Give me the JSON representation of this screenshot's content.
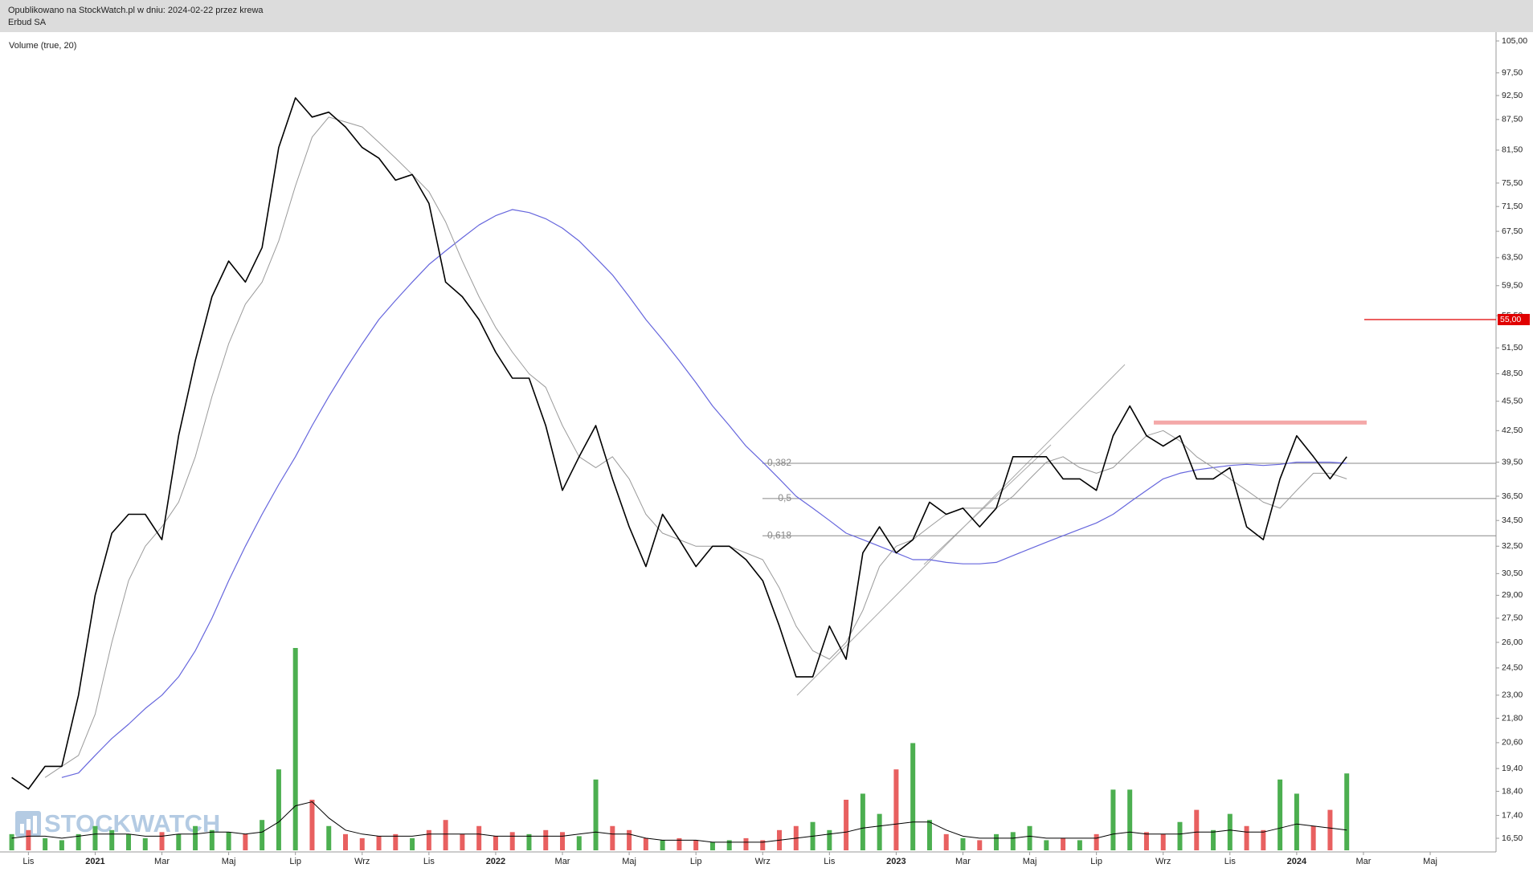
{
  "header": {
    "line1": "Opublikowano na StockWatch.pl w dniu: 2024-02-22 przez krewa",
    "line2": "Erbud SA"
  },
  "chart_data": {
    "type": "line",
    "indicator_label": "Volume (true, 20)",
    "watermark": "STOCKWATCH",
    "categories": [
      null,
      "Lis",
      null,
      null,
      null,
      "2021",
      null,
      null,
      null,
      "Mar",
      null,
      null,
      null,
      "Maj",
      null,
      null,
      null,
      "Lip",
      null,
      null,
      null,
      "Wrz",
      null,
      null,
      null,
      "Lis",
      null,
      null,
      null,
      "2022",
      null,
      null,
      null,
      "Mar",
      null,
      null,
      null,
      "Maj",
      null,
      null,
      null,
      "Lip",
      null,
      null,
      null,
      "Wrz",
      null,
      null,
      null,
      "Lis",
      null,
      null,
      null,
      "2023",
      null,
      null,
      null,
      "Mar",
      null,
      null,
      null,
      "Maj",
      null,
      null,
      null,
      "Lip",
      null,
      null,
      null,
      "Wrz",
      null,
      null,
      null,
      "Lis",
      null,
      null,
      null,
      "2024",
      null,
      null,
      null,
      "Mar",
      null,
      null,
      null,
      "Maj",
      null,
      null,
      null,
      null
    ],
    "ylog": true,
    "ylim": [
      16.5,
      105
    ],
    "yticks": [
      {
        "value": 105,
        "label": "105,00"
      },
      {
        "value": 97.5,
        "label": "97,50"
      },
      {
        "value": 92.5,
        "label": "92,50"
      },
      {
        "value": 87.5,
        "label": "87,50"
      },
      {
        "value": 81.5,
        "label": "81,50"
      },
      {
        "value": 75.5,
        "label": "75,50"
      },
      {
        "value": 71.5,
        "label": "71,50"
      },
      {
        "value": 67.5,
        "label": "67,50"
      },
      {
        "value": 63.5,
        "label": "63,50"
      },
      {
        "value": 59.5,
        "label": "59,50"
      },
      {
        "value": 55.5,
        "label": "55,50"
      },
      {
        "value": 51.5,
        "label": "51,50"
      },
      {
        "value": 48.5,
        "label": "48,50"
      },
      {
        "value": 45.5,
        "label": "45,50"
      },
      {
        "value": 42.5,
        "label": "42,50"
      },
      {
        "value": 39.5,
        "label": "39,50"
      },
      {
        "value": 36.5,
        "label": "36,50"
      },
      {
        "value": 34.5,
        "label": "34,50"
      },
      {
        "value": 32.5,
        "label": "32,50"
      },
      {
        "value": 30.5,
        "label": "30,50"
      },
      {
        "value": 29,
        "label": "29,00"
      },
      {
        "value": 27.5,
        "label": "27,50"
      },
      {
        "value": 26,
        "label": "26,00"
      },
      {
        "value": 24.5,
        "label": "24,50"
      },
      {
        "value": 23,
        "label": "23,00"
      },
      {
        "value": 21.8,
        "label": "21,80"
      },
      {
        "value": 20.6,
        "label": "20,60"
      },
      {
        "value": 19.4,
        "label": "19,40"
      },
      {
        "value": 18.4,
        "label": "18,40"
      },
      {
        "value": 17.4,
        "label": "17,40"
      },
      {
        "value": 16.5,
        "label": "16,50"
      }
    ],
    "series": [
      {
        "color": "#000000",
        "width": 1.6,
        "values": [
          19,
          18.5,
          19.5,
          19.5,
          23,
          29,
          33.5,
          35,
          35,
          33,
          42,
          50,
          58,
          63,
          60,
          65,
          82,
          92,
          88,
          89,
          86,
          82,
          80,
          76,
          77,
          72,
          60,
          58,
          55,
          51,
          48,
          48,
          43,
          37,
          40,
          43,
          38,
          34,
          31,
          35,
          33,
          31,
          32.5,
          32.5,
          31.5,
          30,
          27,
          24,
          24,
          27,
          25,
          32,
          34,
          32,
          33,
          36,
          35,
          35.5,
          34,
          35.5,
          40,
          40,
          40,
          38,
          38,
          37,
          42,
          45,
          42,
          41,
          42,
          38,
          38,
          39,
          34,
          33,
          38,
          42,
          40,
          38,
          40,
          null,
          null,
          null,
          null,
          null,
          null,
          null,
          null,
          null
        ]
      },
      {
        "color": "#9a9a9a",
        "width": 1,
        "values": [
          null,
          null,
          19,
          19.5,
          20,
          22,
          26,
          30,
          32.5,
          34,
          36,
          40,
          46,
          52,
          57,
          60,
          66,
          75,
          84,
          88,
          87,
          86,
          83,
          80,
          77,
          74,
          69,
          63,
          58,
          54,
          51,
          48.5,
          47,
          43,
          40,
          39,
          40,
          38,
          35,
          33.5,
          33,
          32.5,
          32.5,
          32.5,
          32,
          31.5,
          29.5,
          27,
          25.5,
          25,
          26,
          28,
          31,
          32.5,
          33,
          34,
          35,
          35.5,
          35.5,
          35.5,
          36.5,
          38,
          39.5,
          40,
          39,
          38.5,
          39,
          40.5,
          42,
          42.5,
          41.5,
          40,
          39,
          38,
          37,
          36,
          35.5,
          37,
          38.5,
          38.5,
          38,
          null,
          null,
          null,
          null,
          null,
          null,
          null,
          null,
          null
        ]
      },
      {
        "color": "#6666dd",
        "width": 1.2,
        "values": [
          null,
          null,
          null,
          19,
          19.2,
          20,
          20.8,
          21.5,
          22.3,
          23,
          24,
          25.5,
          27.5,
          30,
          32.5,
          35,
          37.5,
          40,
          43,
          46,
          49,
          52,
          55,
          57.5,
          60,
          62.5,
          64.5,
          66.5,
          68.5,
          70,
          71,
          70.5,
          69.5,
          68,
          66,
          63.5,
          61,
          58,
          55,
          52.5,
          50,
          47.5,
          45,
          43,
          41,
          39.5,
          38,
          36.5,
          35.5,
          34.5,
          33.5,
          33,
          32.5,
          32,
          31.5,
          31.5,
          31.3,
          31.2,
          31.2,
          31.3,
          31.8,
          32.3,
          32.8,
          33.3,
          33.8,
          34.3,
          35,
          36,
          37,
          38,
          38.5,
          38.8,
          39,
          39.2,
          39.3,
          39.2,
          39.3,
          39.5,
          39.5,
          39.5,
          39.4,
          null,
          null,
          null,
          null,
          null,
          null,
          null,
          null,
          null
        ]
      }
    ],
    "volume": {
      "ylim": [
        0,
        100
      ],
      "up_color": "#4caf50",
      "down_color": "#e86060",
      "values": [
        8,
        10,
        6,
        5,
        8,
        12,
        10,
        8,
        6,
        9,
        8,
        12,
        10,
        9,
        8,
        15,
        40,
        100,
        25,
        12,
        8,
        6,
        7,
        8,
        6,
        10,
        15,
        8,
        12,
        7,
        9,
        8,
        10,
        9,
        7,
        35,
        12,
        10,
        6,
        5,
        6,
        5,
        4,
        5,
        6,
        5,
        10,
        12,
        14,
        10,
        25,
        28,
        18,
        40,
        53,
        15,
        8,
        6,
        5,
        8,
        9,
        12,
        5,
        6,
        5,
        8,
        30,
        30,
        9,
        8,
        14,
        20,
        10,
        18,
        12,
        10,
        35,
        28,
        12,
        20,
        38,
        null,
        null,
        null,
        null,
        null,
        null,
        null,
        null,
        null
      ],
      "ma": {
        "color": "#000000",
        "values": [
          6,
          7,
          7,
          6,
          7,
          8,
          8,
          8,
          7,
          7,
          8,
          8,
          9,
          9,
          8,
          9,
          14,
          22,
          24,
          16,
          10,
          8,
          7,
          7,
          7,
          8,
          8,
          8,
          8,
          7,
          7,
          7,
          7,
          7,
          8,
          9,
          8,
          8,
          6,
          5,
          5,
          5,
          4,
          4,
          4,
          4,
          5,
          6,
          7,
          8,
          9,
          11,
          12,
          13,
          14,
          14,
          10,
          7,
          6,
          6,
          6,
          7,
          6,
          6,
          6,
          6,
          8,
          9,
          8,
          8,
          8,
          9,
          9,
          10,
          9,
          9,
          11,
          13,
          12,
          11,
          10,
          null,
          null,
          null,
          null,
          null,
          null,
          null,
          null,
          null
        ]
      }
    },
    "fib_levels": [
      {
        "label": "0,382",
        "value": 39.4
      },
      {
        "label": "0,5",
        "value": 36.3
      },
      {
        "label": "0,618",
        "value": 33.3
      }
    ],
    "hline": {
      "value": 55,
      "label": "55,00",
      "color": "#e00000"
    },
    "resistance": {
      "value": 43.3,
      "color": "#f4a8a8"
    }
  }
}
